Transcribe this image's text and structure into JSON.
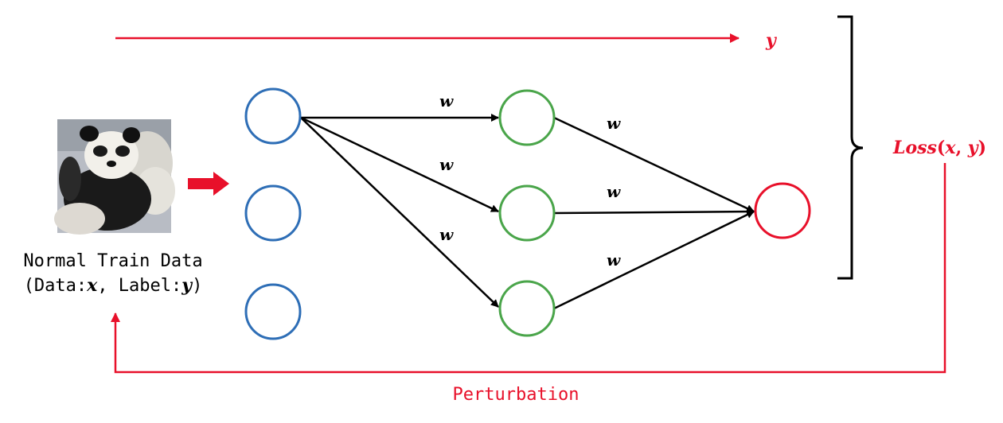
{
  "input": {
    "caption_line1": "Normal Train Data",
    "caption_line2_open": "(Data:",
    "caption_x": "x",
    "caption_mid": ", Label:",
    "caption_y": "y",
    "caption_close": ")",
    "image_subject": "panda photo"
  },
  "top_output": {
    "label": "y"
  },
  "weights": {
    "w1": "w",
    "w2": "w",
    "w3": "w",
    "w4": "w",
    "w5": "w",
    "w6": "w"
  },
  "loss": {
    "prefix": "Loss",
    "open": "(",
    "x": "x",
    "comma": ", ",
    "y": "y",
    "close": ")"
  },
  "feedback": {
    "label": "Perturbation"
  },
  "colors": {
    "input_node": "#2e6eb6",
    "hidden_node": "#4aa54a",
    "output_node": "#e8102a",
    "accent_red": "#e8102a",
    "edge": "#000000"
  }
}
